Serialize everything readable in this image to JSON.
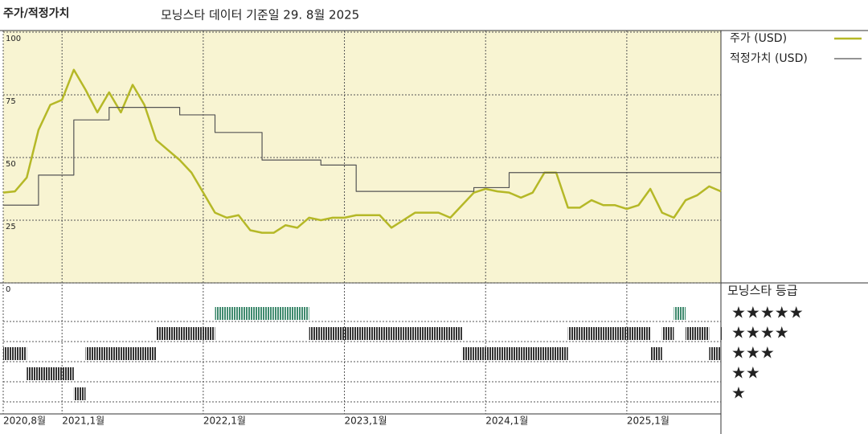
{
  "chart_data": [
    {
      "type": "line",
      "title": "주가/적정가치",
      "subtitle": "모닝스타 데이터 기준일 29. 8월 2025",
      "x": [
        "2020-08",
        "2020-09",
        "2020-10",
        "2020-11",
        "2020-12",
        "2021-01",
        "2021-02",
        "2021-03",
        "2021-04",
        "2021-05",
        "2021-06",
        "2021-07",
        "2021-08",
        "2021-09",
        "2021-10",
        "2021-11",
        "2021-12",
        "2022-01",
        "2022-02",
        "2022-03",
        "2022-04",
        "2022-05",
        "2022-06",
        "2022-07",
        "2022-08",
        "2022-09",
        "2022-10",
        "2022-11",
        "2022-12",
        "2023-01",
        "2023-02",
        "2023-03",
        "2023-04",
        "2023-05",
        "2023-06",
        "2023-07",
        "2023-08",
        "2023-09",
        "2023-10",
        "2023-11",
        "2023-12",
        "2024-01",
        "2024-02",
        "2024-03",
        "2024-04",
        "2024-05",
        "2024-06",
        "2024-07",
        "2024-08",
        "2024-09",
        "2024-10",
        "2024-11",
        "2024-12",
        "2025-01",
        "2025-02",
        "2025-03",
        "2025-04",
        "2025-05",
        "2025-06",
        "2025-07",
        "2025-08",
        "2025-09"
      ],
      "series": [
        {
          "name": "주가 (USD)",
          "color": "#b5b827",
          "step": false,
          "values": [
            36,
            36.5,
            42,
            61,
            71,
            73,
            85,
            77,
            68,
            76,
            68,
            79,
            71,
            57,
            53,
            49,
            44,
            36,
            28,
            26,
            27,
            21,
            20,
            20,
            23,
            22,
            26,
            25,
            26,
            26,
            27,
            27,
            27,
            22,
            25,
            28,
            28,
            28,
            26,
            31,
            36,
            37.5,
            36.5,
            36,
            34,
            36,
            44,
            44,
            30,
            30,
            33,
            31,
            31,
            29.5,
            31,
            37.5,
            28,
            26,
            33,
            35,
            38.5,
            36.5
          ]
        },
        {
          "name": "적정가치 (USD)",
          "color": "#555555",
          "step": true,
          "values": [
            31,
            31,
            31,
            43,
            43,
            43,
            65,
            65,
            65,
            70,
            70,
            70,
            70,
            70,
            70,
            67,
            67,
            67,
            60,
            60,
            60,
            60,
            49,
            49,
            49,
            49,
            49,
            47,
            47,
            47,
            36.5,
            36.5,
            36.5,
            36.5,
            36.5,
            36.5,
            36.5,
            36.5,
            36.5,
            36.5,
            38,
            38,
            38,
            44,
            44,
            44,
            44,
            44,
            44,
            44,
            44,
            44,
            44,
            44,
            44,
            44,
            44,
            44,
            44,
            44,
            44,
            44
          ]
        }
      ],
      "xlim": [
        "2020-08",
        "2025-09"
      ],
      "xticks": [
        {
          "value": "2020-08",
          "label": "2020,8월"
        },
        {
          "value": "2021-01",
          "label": "2021,1월"
        },
        {
          "value": "2022-01",
          "label": "2022,1월"
        },
        {
          "value": "2023-01",
          "label": "2023,1월"
        },
        {
          "value": "2024-01",
          "label": "2024,1월"
        },
        {
          "value": "2025-01",
          "label": "2025,1월"
        }
      ],
      "ylim": [
        0,
        100
      ],
      "yticks": [
        0,
        25,
        50,
        75,
        100
      ],
      "grid": true
    },
    {
      "type": "rating",
      "title": "모닝스타 등급",
      "levels": [
        {
          "value": 5,
          "label": "★★★★★",
          "color": "#3f8a6e"
        },
        {
          "value": 4,
          "label": "★★★★",
          "color": "#333333"
        },
        {
          "value": 3,
          "label": "★★★",
          "color": "#333333"
        },
        {
          "value": 2,
          "label": "★★",
          "color": "#333333"
        },
        {
          "value": 1,
          "label": "★",
          "color": "#333333"
        }
      ],
      "values": [
        3,
        3,
        2,
        2,
        2,
        2,
        1,
        3,
        3,
        3,
        3,
        3,
        3,
        4,
        4,
        4,
        4,
        4,
        5,
        5,
        5,
        5,
        5,
        5,
        5,
        5,
        4,
        4,
        4,
        4,
        4,
        4,
        4,
        4,
        4,
        4,
        4,
        4,
        4,
        3,
        3,
        3,
        3,
        3,
        3,
        3,
        3,
        3,
        4,
        4,
        4,
        4,
        4,
        4,
        4,
        3,
        4,
        5,
        4,
        4,
        3,
        4
      ]
    }
  ]
}
